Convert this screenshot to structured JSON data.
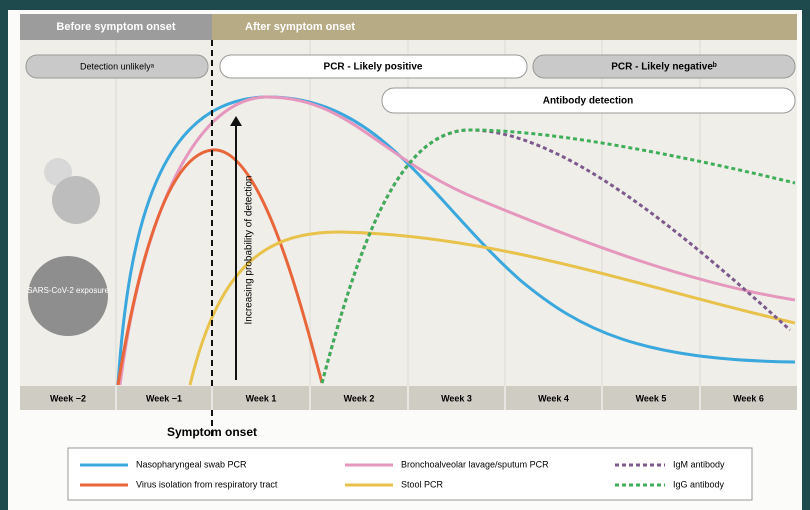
{
  "header": {
    "before": "Before symptom onset",
    "after": "After symptom onset"
  },
  "phases": {
    "detection_unlikely": "Detection unlikelyᵃ",
    "pcr_positive": "PCR - Likely positive",
    "pcr_negative": "PCR - Likely negativeᵇ",
    "antibody": "Antibody detection"
  },
  "weeks": [
    "Week −2",
    "Week −1",
    "Week 1",
    "Week 2",
    "Week 3",
    "Week 4",
    "Week 5",
    "Week 6"
  ],
  "y_label": "Increasing probability of detection",
  "onset_label": "Symptom onset",
  "virus_label": "SARS-CoV-2 exposure",
  "legend": [
    "Nasopharyngeal swab PCR",
    "Virus isolation from respiratory tract",
    "Bronchoalveolar lavage/sputum PCR",
    "Stool PCR",
    "IgM antibody",
    "IgG antibody"
  ]
}
